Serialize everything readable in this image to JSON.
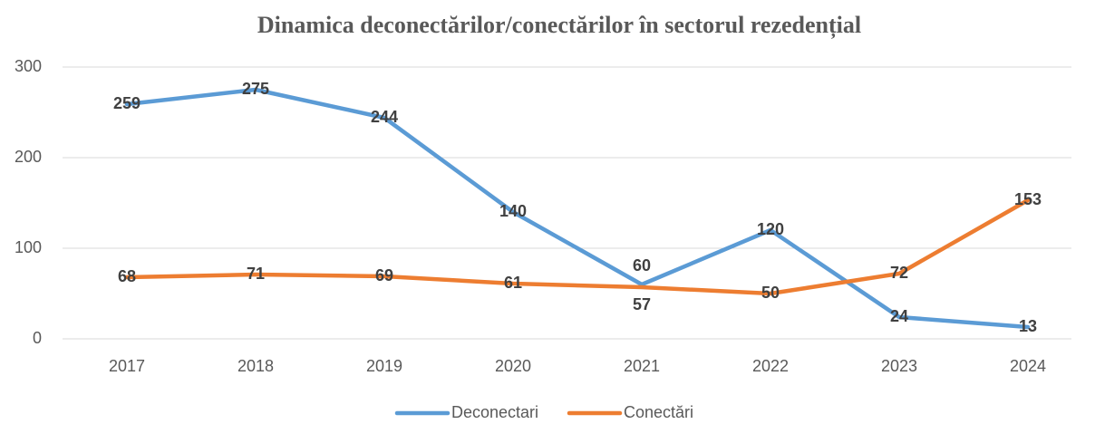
{
  "chart_data": {
    "type": "line",
    "title": "Dinamica deconectărilor/conectărilor în sectorul rezedențial",
    "categories": [
      "2017",
      "2018",
      "2019",
      "2020",
      "2021",
      "2022",
      "2023",
      "2024"
    ],
    "series": [
      {
        "name": "Deconectari",
        "color": "#5b9bd5",
        "values": [
          259,
          275,
          244,
          140,
          60,
          120,
          24,
          13
        ]
      },
      {
        "name": "Conectări",
        "color": "#ed7d31",
        "values": [
          68,
          71,
          69,
          61,
          57,
          50,
          72,
          153
        ]
      }
    ],
    "ylim": [
      0,
      300
    ],
    "yticks": [
      0,
      100,
      200,
      300
    ],
    "grid": true,
    "legend": "bottom"
  }
}
